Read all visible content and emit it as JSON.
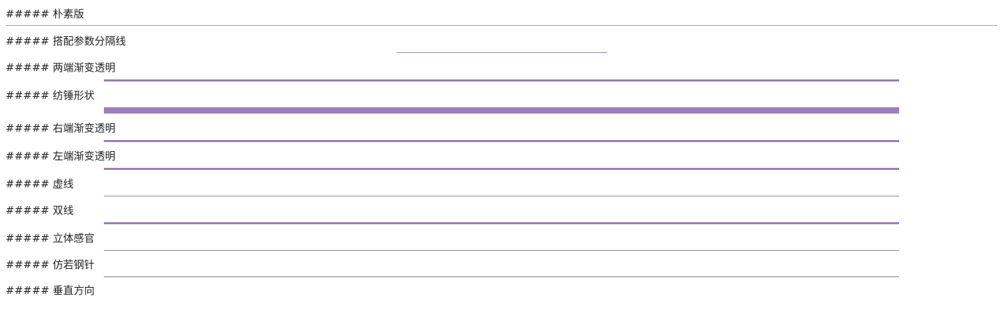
{
  "sections": [
    {
      "heading": "##### 朴素版"
    },
    {
      "heading": "##### 搭配参数分隔线"
    },
    {
      "heading": "##### 两端渐变透明"
    },
    {
      "heading": "##### 纺锤形状"
    },
    {
      "heading": "##### 右端渐变透明"
    },
    {
      "heading": "##### 左端渐变透明"
    },
    {
      "heading": "##### 虚线"
    },
    {
      "heading": "##### 双线"
    },
    {
      "heading": "##### 立体感官"
    },
    {
      "heading": "##### 仿若钢针"
    },
    {
      "heading": "##### 垂直方向"
    }
  ],
  "colors": {
    "accent": "#9b7fba",
    "gray_rule": "#9e9e9e",
    "text": "#222222",
    "background": "#ffffff"
  }
}
